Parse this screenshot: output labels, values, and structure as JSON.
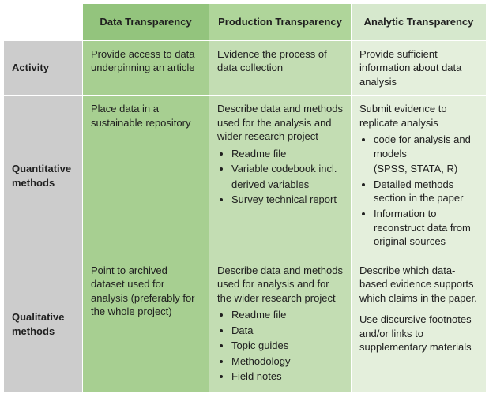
{
  "headers": {
    "col1": "Data Transparency",
    "col2": "Production Transparency",
    "col3": "Analytic Transparency"
  },
  "rows": {
    "activity": {
      "label": "Activity",
      "data": "Provide access to data underpinning an article",
      "prod": "Evidence the process of data collection",
      "analytic": "Provide sufficient information about data analysis"
    },
    "quant": {
      "label": "Quantitative methods",
      "data": "Place data in a sustainable repository",
      "prod_intro": "Describe data and methods used for the analysis and wider research project",
      "prod_items": {
        "a": "Readme file",
        "b": "Variable codebook incl.",
        "b_sub": "derived variables",
        "c": "Survey technical report"
      },
      "analytic_intro": "Submit evidence to replicate analysis",
      "analytic_items": {
        "a": "code for analysis and models",
        "a_sub": "(SPSS, STATA, R)",
        "b": "Detailed methods section in the paper",
        "c": "Information to reconstruct data from original sources"
      }
    },
    "qual": {
      "label": "Qualitative methods",
      "data": "Point to archived dataset used for analysis (preferably for the whole project)",
      "prod_intro": "Describe data and methods used for analysis and for the wider research project",
      "prod_items": {
        "a": "Readme file",
        "b": "Data",
        "c": "Topic guides",
        "d": "Methodology",
        "e": "Field notes"
      },
      "analytic_p1": "Describe which data-based evidence supports which claims in the paper.",
      "analytic_p2": "Use discursive footnotes and/or links to supplementary materials"
    }
  }
}
